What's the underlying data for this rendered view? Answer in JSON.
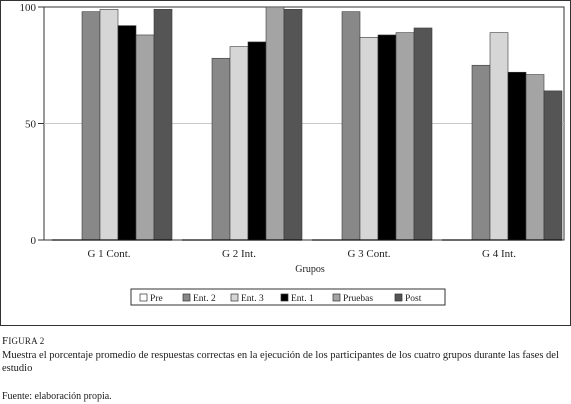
{
  "colors": {
    "pre": "#ffffff",
    "ent2": "#888888",
    "ent3": "#d6d6d6",
    "ent1": "#000000",
    "pruebas": "#a4a4a4",
    "post": "#555555",
    "gridline": "#c8c8c8",
    "border": "#333333"
  },
  "chart_data": {
    "type": "bar",
    "title": "",
    "xlabel": "Grupos",
    "ylabel": "",
    "ylim": [
      0,
      100
    ],
    "yticks": [
      0,
      50,
      100
    ],
    "grid": true,
    "legend_position": "bottom",
    "categories": [
      "G 1 Cont.",
      "G 2 Int.",
      "G 3 Cont.",
      "G 4 Int."
    ],
    "series": [
      {
        "name": "Pre",
        "color_key": "pre",
        "values": [
          0,
          0,
          0,
          0
        ]
      },
      {
        "name": "Ent. 2",
        "color_key": "ent2",
        "values": [
          98,
          78,
          98,
          75
        ]
      },
      {
        "name": "Ent. 3",
        "color_key": "ent3",
        "values": [
          99,
          83,
          87,
          89
        ]
      },
      {
        "name": "Ent. 1",
        "color_key": "ent1",
        "values": [
          92,
          85,
          88,
          72
        ]
      },
      {
        "name": "Pruebas",
        "color_key": "pruebas",
        "values": [
          88,
          100,
          89,
          71
        ]
      },
      {
        "name": "Post",
        "color_key": "post",
        "values": [
          99,
          99,
          91,
          64
        ]
      }
    ]
  },
  "caption": {
    "label_first": "F",
    "label_rest": "IGURA 2",
    "text": "Muestra el porcentaje promedio de respuestas correctas en la ejecución de los participantes de los cuatro grupos durante las fases del estudio"
  },
  "source": "Fuente: elaboración propia."
}
